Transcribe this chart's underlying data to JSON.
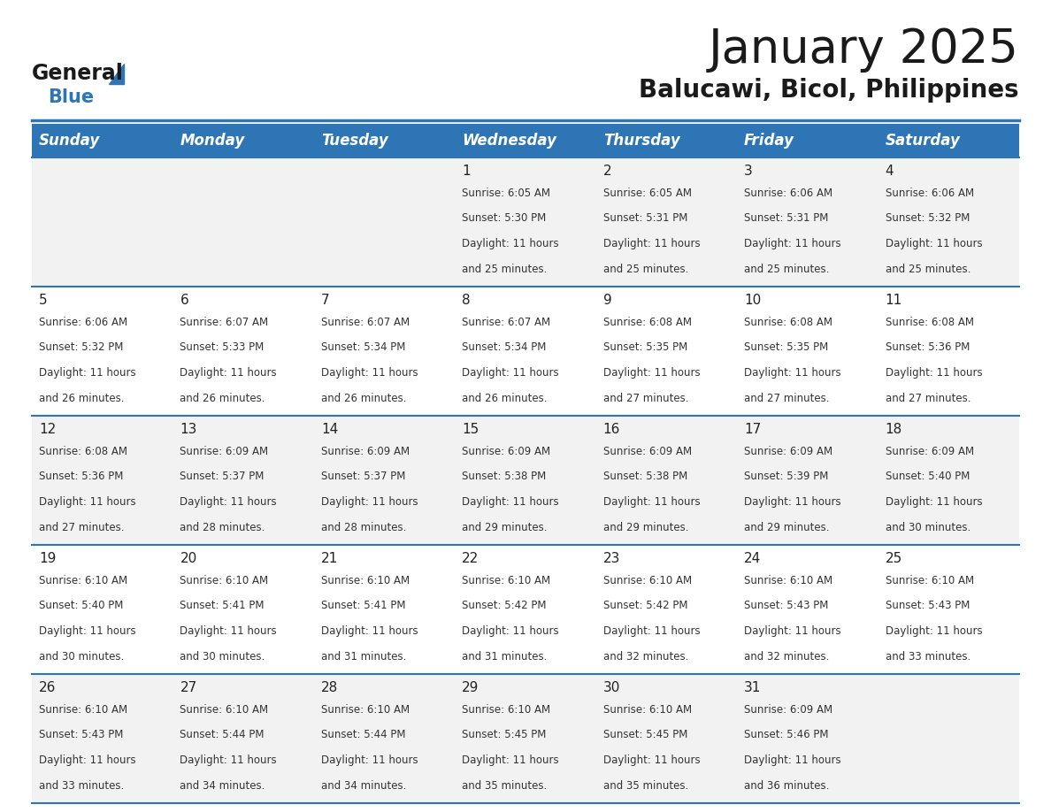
{
  "title": "January 2025",
  "subtitle": "Balucawi, Bicol, Philippines",
  "days_of_week": [
    "Sunday",
    "Monday",
    "Tuesday",
    "Wednesday",
    "Thursday",
    "Friday",
    "Saturday"
  ],
  "header_bg": "#2E75B6",
  "header_text_color": "#FFFFFF",
  "cell_bg_odd": "#F2F2F2",
  "cell_bg_even": "#FFFFFF",
  "cell_text_color": "#333333",
  "day_num_color": "#222222",
  "grid_line_color": "#2E75B6",
  "title_color": "#1A1A1A",
  "subtitle_color": "#1A1A1A",
  "logo_general_color": "#1A1A1A",
  "logo_blue_color": "#2E75B6",
  "days": [
    {
      "date": 1,
      "col": 3,
      "row": 0,
      "sunrise": "6:05 AM",
      "sunset": "5:30 PM",
      "daylight_hours": 11,
      "daylight_minutes": 25
    },
    {
      "date": 2,
      "col": 4,
      "row": 0,
      "sunrise": "6:05 AM",
      "sunset": "5:31 PM",
      "daylight_hours": 11,
      "daylight_minutes": 25
    },
    {
      "date": 3,
      "col": 5,
      "row": 0,
      "sunrise": "6:06 AM",
      "sunset": "5:31 PM",
      "daylight_hours": 11,
      "daylight_minutes": 25
    },
    {
      "date": 4,
      "col": 6,
      "row": 0,
      "sunrise": "6:06 AM",
      "sunset": "5:32 PM",
      "daylight_hours": 11,
      "daylight_minutes": 25
    },
    {
      "date": 5,
      "col": 0,
      "row": 1,
      "sunrise": "6:06 AM",
      "sunset": "5:32 PM",
      "daylight_hours": 11,
      "daylight_minutes": 26
    },
    {
      "date": 6,
      "col": 1,
      "row": 1,
      "sunrise": "6:07 AM",
      "sunset": "5:33 PM",
      "daylight_hours": 11,
      "daylight_minutes": 26
    },
    {
      "date": 7,
      "col": 2,
      "row": 1,
      "sunrise": "6:07 AM",
      "sunset": "5:34 PM",
      "daylight_hours": 11,
      "daylight_minutes": 26
    },
    {
      "date": 8,
      "col": 3,
      "row": 1,
      "sunrise": "6:07 AM",
      "sunset": "5:34 PM",
      "daylight_hours": 11,
      "daylight_minutes": 26
    },
    {
      "date": 9,
      "col": 4,
      "row": 1,
      "sunrise": "6:08 AM",
      "sunset": "5:35 PM",
      "daylight_hours": 11,
      "daylight_minutes": 27
    },
    {
      "date": 10,
      "col": 5,
      "row": 1,
      "sunrise": "6:08 AM",
      "sunset": "5:35 PM",
      "daylight_hours": 11,
      "daylight_minutes": 27
    },
    {
      "date": 11,
      "col": 6,
      "row": 1,
      "sunrise": "6:08 AM",
      "sunset": "5:36 PM",
      "daylight_hours": 11,
      "daylight_minutes": 27
    },
    {
      "date": 12,
      "col": 0,
      "row": 2,
      "sunrise": "6:08 AM",
      "sunset": "5:36 PM",
      "daylight_hours": 11,
      "daylight_minutes": 27
    },
    {
      "date": 13,
      "col": 1,
      "row": 2,
      "sunrise": "6:09 AM",
      "sunset": "5:37 PM",
      "daylight_hours": 11,
      "daylight_minutes": 28
    },
    {
      "date": 14,
      "col": 2,
      "row": 2,
      "sunrise": "6:09 AM",
      "sunset": "5:37 PM",
      "daylight_hours": 11,
      "daylight_minutes": 28
    },
    {
      "date": 15,
      "col": 3,
      "row": 2,
      "sunrise": "6:09 AM",
      "sunset": "5:38 PM",
      "daylight_hours": 11,
      "daylight_minutes": 29
    },
    {
      "date": 16,
      "col": 4,
      "row": 2,
      "sunrise": "6:09 AM",
      "sunset": "5:38 PM",
      "daylight_hours": 11,
      "daylight_minutes": 29
    },
    {
      "date": 17,
      "col": 5,
      "row": 2,
      "sunrise": "6:09 AM",
      "sunset": "5:39 PM",
      "daylight_hours": 11,
      "daylight_minutes": 29
    },
    {
      "date": 18,
      "col": 6,
      "row": 2,
      "sunrise": "6:09 AM",
      "sunset": "5:40 PM",
      "daylight_hours": 11,
      "daylight_minutes": 30
    },
    {
      "date": 19,
      "col": 0,
      "row": 3,
      "sunrise": "6:10 AM",
      "sunset": "5:40 PM",
      "daylight_hours": 11,
      "daylight_minutes": 30
    },
    {
      "date": 20,
      "col": 1,
      "row": 3,
      "sunrise": "6:10 AM",
      "sunset": "5:41 PM",
      "daylight_hours": 11,
      "daylight_minutes": 30
    },
    {
      "date": 21,
      "col": 2,
      "row": 3,
      "sunrise": "6:10 AM",
      "sunset": "5:41 PM",
      "daylight_hours": 11,
      "daylight_minutes": 31
    },
    {
      "date": 22,
      "col": 3,
      "row": 3,
      "sunrise": "6:10 AM",
      "sunset": "5:42 PM",
      "daylight_hours": 11,
      "daylight_minutes": 31
    },
    {
      "date": 23,
      "col": 4,
      "row": 3,
      "sunrise": "6:10 AM",
      "sunset": "5:42 PM",
      "daylight_hours": 11,
      "daylight_minutes": 32
    },
    {
      "date": 24,
      "col": 5,
      "row": 3,
      "sunrise": "6:10 AM",
      "sunset": "5:43 PM",
      "daylight_hours": 11,
      "daylight_minutes": 32
    },
    {
      "date": 25,
      "col": 6,
      "row": 3,
      "sunrise": "6:10 AM",
      "sunset": "5:43 PM",
      "daylight_hours": 11,
      "daylight_minutes": 33
    },
    {
      "date": 26,
      "col": 0,
      "row": 4,
      "sunrise": "6:10 AM",
      "sunset": "5:43 PM",
      "daylight_hours": 11,
      "daylight_minutes": 33
    },
    {
      "date": 27,
      "col": 1,
      "row": 4,
      "sunrise": "6:10 AM",
      "sunset": "5:44 PM",
      "daylight_hours": 11,
      "daylight_minutes": 34
    },
    {
      "date": 28,
      "col": 2,
      "row": 4,
      "sunrise": "6:10 AM",
      "sunset": "5:44 PM",
      "daylight_hours": 11,
      "daylight_minutes": 34
    },
    {
      "date": 29,
      "col": 3,
      "row": 4,
      "sunrise": "6:10 AM",
      "sunset": "5:45 PM",
      "daylight_hours": 11,
      "daylight_minutes": 35
    },
    {
      "date": 30,
      "col": 4,
      "row": 4,
      "sunrise": "6:10 AM",
      "sunset": "5:45 PM",
      "daylight_hours": 11,
      "daylight_minutes": 35
    },
    {
      "date": 31,
      "col": 5,
      "row": 4,
      "sunrise": "6:09 AM",
      "sunset": "5:46 PM",
      "daylight_hours": 11,
      "daylight_minutes": 36
    }
  ]
}
